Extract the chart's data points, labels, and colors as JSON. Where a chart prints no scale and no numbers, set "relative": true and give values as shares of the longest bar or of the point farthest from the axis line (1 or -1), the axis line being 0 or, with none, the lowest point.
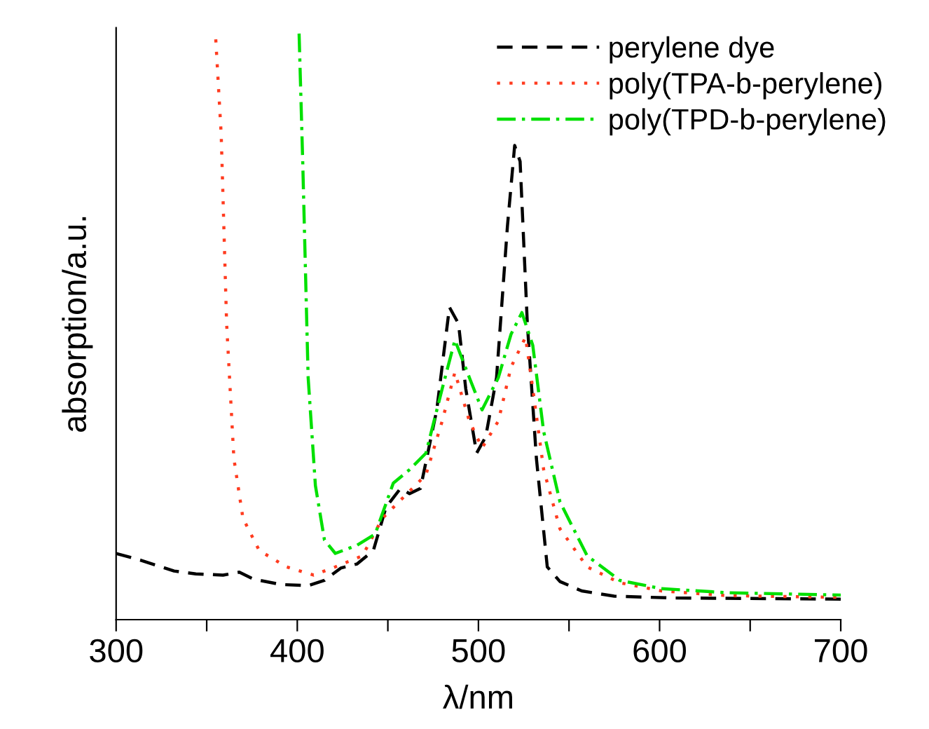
{
  "chart_data": {
    "type": "line",
    "relative": true,
    "xlabel": "λ/nm",
    "ylabel": "absorption/a.u.",
    "xlim": [
      300,
      700
    ],
    "xticks": [
      300,
      {
        "value": 350,
        "label": null
      },
      400,
      {
        "value": 450,
        "label": null
      },
      500,
      {
        "value": 550,
        "label": null
      },
      600,
      {
        "value": 650,
        "label": null
      },
      700
    ],
    "grid": false,
    "legend": "top right",
    "marker": "none",
    "tick_labels": "x",
    "series": [
      {
        "name": "perylene dye",
        "color": "#000000",
        "line_style": "dashed",
        "x": [
          300,
          314,
          332,
          344,
          359,
          368,
          376,
          391,
          406,
          415,
          424,
          433,
          442,
          449,
          457,
          462,
          468,
          477,
          484,
          489,
          493,
          499,
          504,
          510,
          516,
          520,
          523,
          527,
          532,
          538,
          545,
          557,
          575,
          607,
          700
        ],
        "values": [
          0.113,
          0.101,
          0.083,
          0.078,
          0.076,
          0.081,
          0.069,
          0.06,
          0.058,
          0.067,
          0.088,
          0.095,
          0.118,
          0.192,
          0.224,
          0.215,
          0.224,
          0.358,
          0.533,
          0.505,
          0.394,
          0.284,
          0.312,
          0.413,
          0.671,
          0.809,
          0.782,
          0.505,
          0.275,
          0.09,
          0.065,
          0.049,
          0.04,
          0.037,
          0.035
        ]
      },
      {
        "name": "poly(TPA-b-perylene)",
        "color": "#ff3b1f",
        "line_style": "dotted",
        "x": [
          355,
          358,
          361,
          365,
          370,
          379,
          394,
          409,
          421,
          436,
          447,
          459,
          471,
          480,
          487,
          495,
          502,
          511,
          518,
          526,
          530,
          536,
          545,
          560,
          578,
          601,
          637,
          700
        ],
        "values": [
          0.99,
          0.828,
          0.505,
          0.275,
          0.173,
          0.118,
          0.09,
          0.076,
          0.09,
          0.109,
          0.173,
          0.21,
          0.247,
          0.339,
          0.422,
          0.339,
          0.293,
          0.339,
          0.431,
          0.482,
          0.394,
          0.256,
          0.155,
          0.09,
          0.063,
          0.049,
          0.041,
          0.038
        ]
      },
      {
        "name": "poly(TPD-b-perylene)",
        "color": "#00e000",
        "line_style": "dashdot",
        "x": [
          401,
          403,
          406,
          410,
          415,
          421,
          433,
          443,
          453,
          462,
          471,
          480,
          487,
          495,
          502,
          511,
          518,
          524,
          530,
          536,
          545,
          560,
          578,
          601,
          637,
          700
        ],
        "values": [
          1,
          0.782,
          0.413,
          0.229,
          0.136,
          0.113,
          0.127,
          0.146,
          0.233,
          0.256,
          0.284,
          0.394,
          0.477,
          0.413,
          0.358,
          0.413,
          0.487,
          0.524,
          0.468,
          0.321,
          0.201,
          0.109,
          0.067,
          0.053,
          0.046,
          0.042
        ]
      }
    ]
  }
}
